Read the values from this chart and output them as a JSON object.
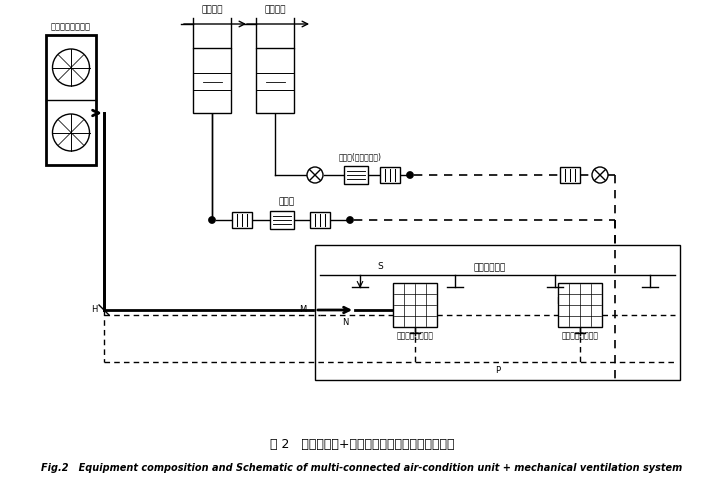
{
  "title_cn": "图 2   多联机空调+机械通风系统设备组成及原理图",
  "title_en": "Fig.2   Equipment composition and Schematic of multi-connected air-condition unit + mechanical ventilation system",
  "label_outdoor": "多联机空调室外机",
  "label_fresh": "新风竖井",
  "label_exhaust_shaft": "排风竖井",
  "label_exhaust_fan": "排风机(兼排烟风机)",
  "label_supply_fan": "送风机",
  "label_room": "设备管理用房",
  "label_indoor1": "多联机空调室内机",
  "label_indoor2": "多联机空调室内机",
  "label_M": "M",
  "label_N": "N",
  "label_S": "S",
  "label_P": "P",
  "label_H": "H"
}
